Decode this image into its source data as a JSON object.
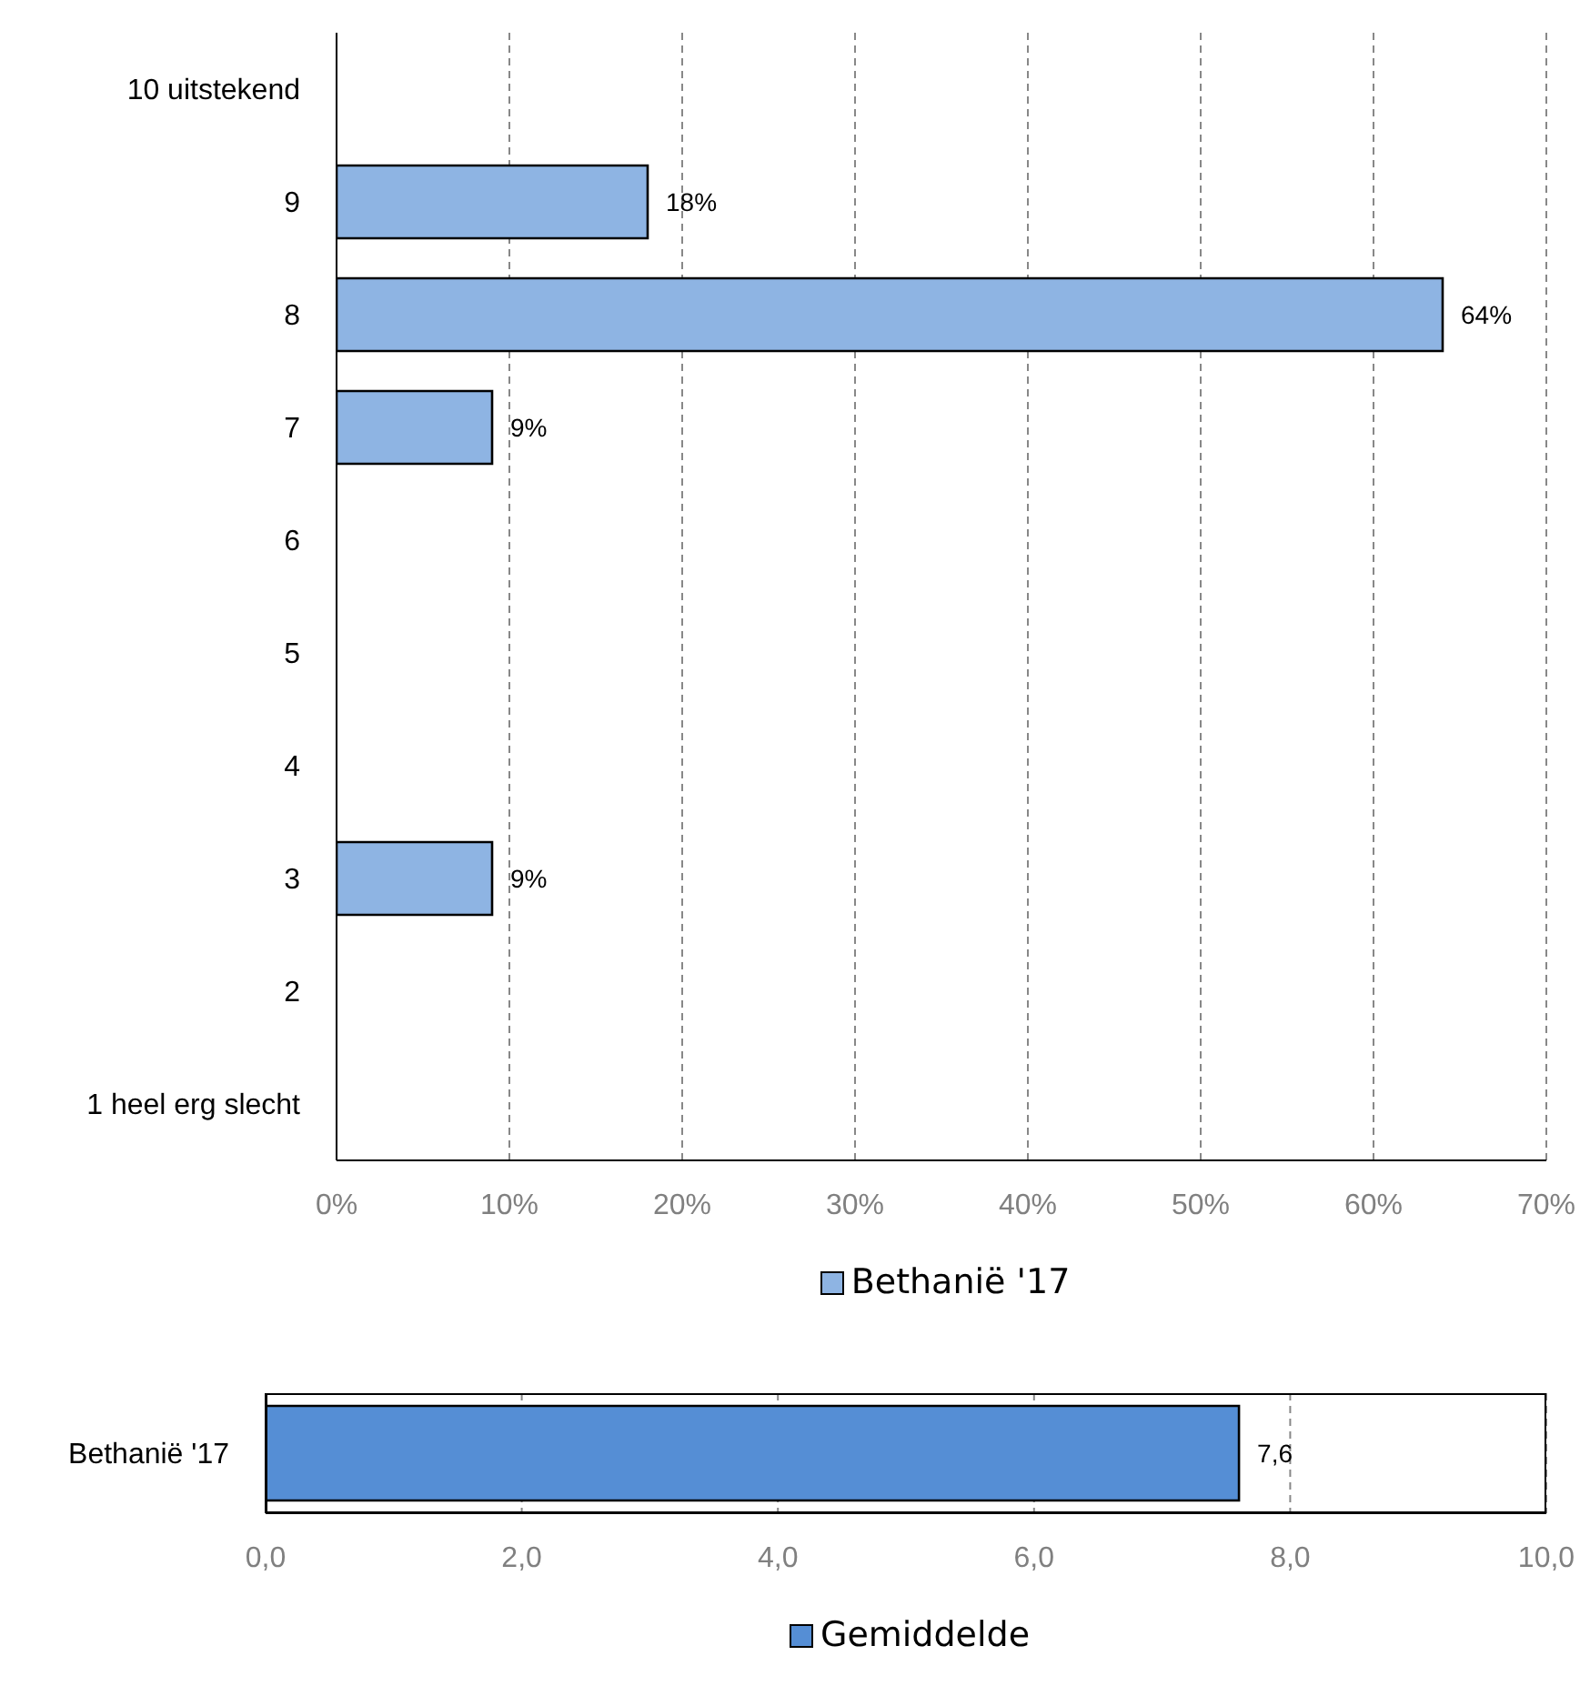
{
  "chart_data": [
    {
      "type": "bar",
      "orientation": "horizontal",
      "categories": [
        "10   uitstekend",
        "9",
        "8",
        "7",
        "6",
        "5",
        "4",
        "3",
        "2",
        "1 heel erg slecht"
      ],
      "series": [
        {
          "name": "Bethanië '17",
          "color": "#8eb4e3",
          "values": [
            0,
            18,
            64,
            9,
            0,
            0,
            0,
            9,
            0,
            0
          ],
          "value_labels": [
            null,
            "18%",
            "64%",
            "9%",
            null,
            null,
            null,
            "9%",
            null,
            null
          ]
        }
      ],
      "xlim": [
        0,
        70
      ],
      "xticks": [
        {
          "value": 0,
          "label": "0%"
        },
        {
          "value": 10,
          "label": "10%"
        },
        {
          "value": 20,
          "label": "20%"
        },
        {
          "value": 30,
          "label": "30%"
        },
        {
          "value": 40,
          "label": "40%"
        },
        {
          "value": 50,
          "label": "50%"
        },
        {
          "value": 60,
          "label": "60%"
        },
        {
          "value": 70,
          "label": "70%"
        }
      ],
      "grid": "x",
      "legend": "bottom"
    },
    {
      "type": "bar",
      "orientation": "horizontal",
      "categories": [
        "Bethanië '17"
      ],
      "series": [
        {
          "name": "Gemiddelde",
          "color": "#558ed5",
          "values": [
            7.6
          ],
          "value_labels": [
            "7,6"
          ]
        }
      ],
      "xlim": [
        0,
        10
      ],
      "xticks": [
        {
          "value": 0,
          "label": "0,0"
        },
        {
          "value": 2,
          "label": "2,0"
        },
        {
          "value": 4,
          "label": "4,0"
        },
        {
          "value": 6,
          "label": "6,0"
        },
        {
          "value": 8,
          "label": "8,0"
        },
        {
          "value": 10,
          "label": "10,0"
        }
      ],
      "grid": "x",
      "legend": "bottom"
    }
  ]
}
